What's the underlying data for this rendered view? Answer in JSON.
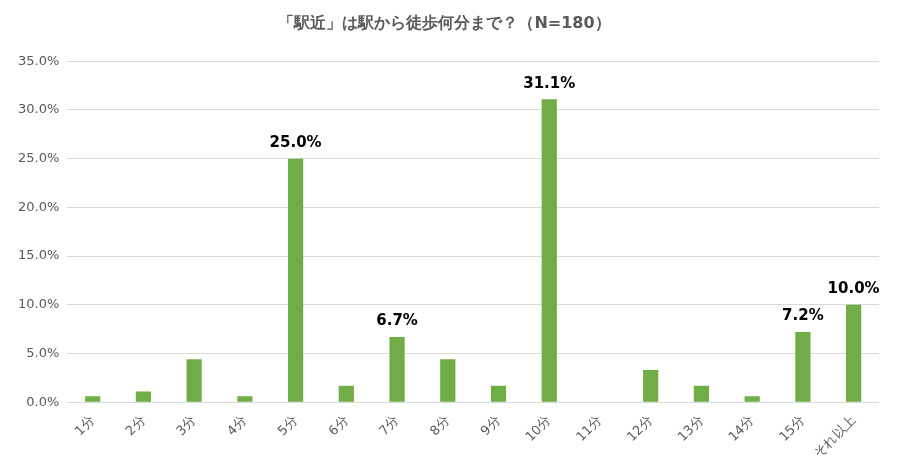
{
  "chart_data": {
    "type": "bar",
    "title": "「駅近」は駅から徒歩何分まで？（N=180）",
    "categories": [
      "1分",
      "2分",
      "3分",
      "4分",
      "5分",
      "6分",
      "7分",
      "8分",
      "9分",
      "10分",
      "11分",
      "12分",
      "13分",
      "14分",
      "15分",
      "それ以上"
    ],
    "values": [
      0.6,
      1.1,
      4.4,
      0.6,
      25.0,
      1.7,
      6.7,
      4.4,
      1.7,
      31.1,
      0,
      3.3,
      1.7,
      0.6,
      7.2,
      10.0
    ],
    "value_labels": [
      null,
      null,
      null,
      null,
      "25.0%",
      null,
      "6.7%",
      null,
      null,
      "31.1%",
      null,
      null,
      null,
      null,
      "7.2%",
      "10.0%"
    ],
    "data_labels": true,
    "color": "#70ad47",
    "ylim": [
      0,
      35
    ],
    "yticks": [
      {
        "value": 0,
        "label": "0.0%"
      },
      {
        "value": 5,
        "label": "5.0%"
      },
      {
        "value": 10,
        "label": "10.0%"
      },
      {
        "value": 15,
        "label": "15.0%"
      },
      {
        "value": 20,
        "label": "20.0%"
      },
      {
        "value": 25,
        "label": "25.0%"
      },
      {
        "value": 30,
        "label": "30.0%"
      },
      {
        "value": 35,
        "label": "35.0%"
      }
    ],
    "grid": true
  }
}
